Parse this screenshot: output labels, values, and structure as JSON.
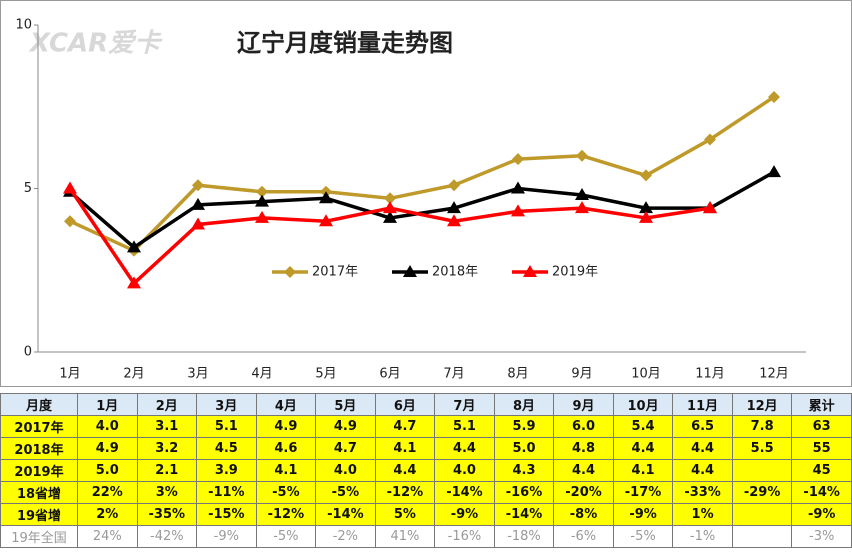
{
  "watermark": "XCAR爱卡",
  "chart_data": {
    "type": "line",
    "title": "辽宁月度销量走势图",
    "categories": [
      "1月",
      "2月",
      "3月",
      "4月",
      "5月",
      "6月",
      "7月",
      "8月",
      "9月",
      "10月",
      "11月",
      "12月"
    ],
    "series": [
      {
        "name": "2017年",
        "color": "#bf9a2a",
        "marker": "diamond",
        "values": [
          4.0,
          3.1,
          5.1,
          4.9,
          4.9,
          4.7,
          5.1,
          5.9,
          6.0,
          5.4,
          6.5,
          7.8
        ]
      },
      {
        "name": "2018年",
        "color": "#000000",
        "marker": "triangle",
        "values": [
          4.9,
          3.2,
          4.5,
          4.6,
          4.7,
          4.1,
          4.4,
          5.0,
          4.8,
          4.4,
          4.4,
          5.5
        ]
      },
      {
        "name": "2019年",
        "color": "#ff0000",
        "marker": "triangle",
        "values": [
          5.0,
          2.1,
          3.9,
          4.1,
          4.0,
          4.4,
          4.0,
          4.3,
          4.4,
          4.1,
          4.4,
          null
        ]
      }
    ],
    "ylim": [
      0,
      10
    ],
    "yticks": [
      0,
      5,
      10
    ],
    "grid": false
  },
  "table": {
    "header": [
      "月度",
      "1月",
      "2月",
      "3月",
      "4月",
      "5月",
      "6月",
      "7月",
      "8月",
      "9月",
      "10月",
      "11月",
      "12月",
      "累计"
    ],
    "rows": [
      [
        "2017年",
        "4.0",
        "3.1",
        "5.1",
        "4.9",
        "4.9",
        "4.7",
        "5.1",
        "5.9",
        "6.0",
        "5.4",
        "6.5",
        "7.8",
        "63"
      ],
      [
        "2018年",
        "4.9",
        "3.2",
        "4.5",
        "4.6",
        "4.7",
        "4.1",
        "4.4",
        "5.0",
        "4.8",
        "4.4",
        "4.4",
        "5.5",
        "55"
      ],
      [
        "2019年",
        "5.0",
        "2.1",
        "3.9",
        "4.1",
        "4.0",
        "4.4",
        "4.0",
        "4.3",
        "4.4",
        "4.1",
        "4.4",
        null,
        "45"
      ],
      [
        "18省增",
        "22%",
        "3%",
        "-11%",
        "-5%",
        "-5%",
        "-12%",
        "-14%",
        "-16%",
        "-20%",
        "-17%",
        "-33%",
        "-29%",
        "-14%"
      ],
      [
        "19省增",
        "2%",
        "-35%",
        "-15%",
        "-12%",
        "-14%",
        "5%",
        "-9%",
        "-14%",
        "-8%",
        "-9%",
        "1%",
        null,
        "-9%"
      ],
      [
        "19年全国",
        "24%",
        "-42%",
        "-9%",
        "-5%",
        "-2%",
        "41%",
        "-16%",
        "-18%",
        "-6%",
        "-5%",
        "-1%",
        null,
        "-3%"
      ]
    ]
  }
}
